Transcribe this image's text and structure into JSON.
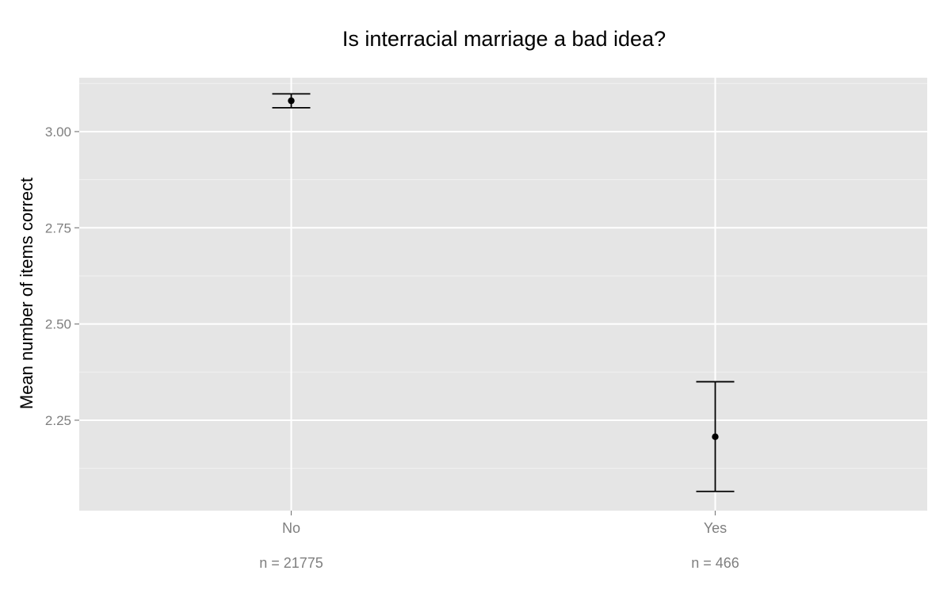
{
  "chart_data": {
    "type": "scatter",
    "title": "Is interracial marriage a bad idea?",
    "xlabel": "",
    "ylabel": "Mean number of items correct",
    "categories": [
      "No",
      "Yes"
    ],
    "category_annotations": [
      "n = 21775",
      "n = 466"
    ],
    "points": [
      {
        "category": "No",
        "mean": 3.08,
        "lower": 3.062,
        "upper": 3.098
      },
      {
        "category": "Yes",
        "mean": 2.207,
        "lower": 2.065,
        "upper": 2.35
      }
    ],
    "ylim": [
      2.015,
      3.14
    ],
    "yticks": [
      2.25,
      2.5,
      2.75,
      3.0
    ],
    "ytick_labels": [
      "2.25",
      "2.50",
      "2.75",
      "3.00"
    ],
    "grid": true,
    "legend": "none",
    "colors": {
      "panel": "#e5e5e5",
      "grid": "#ffffff",
      "marks": "#000000",
      "tick_text": "#7f7f7f"
    }
  }
}
